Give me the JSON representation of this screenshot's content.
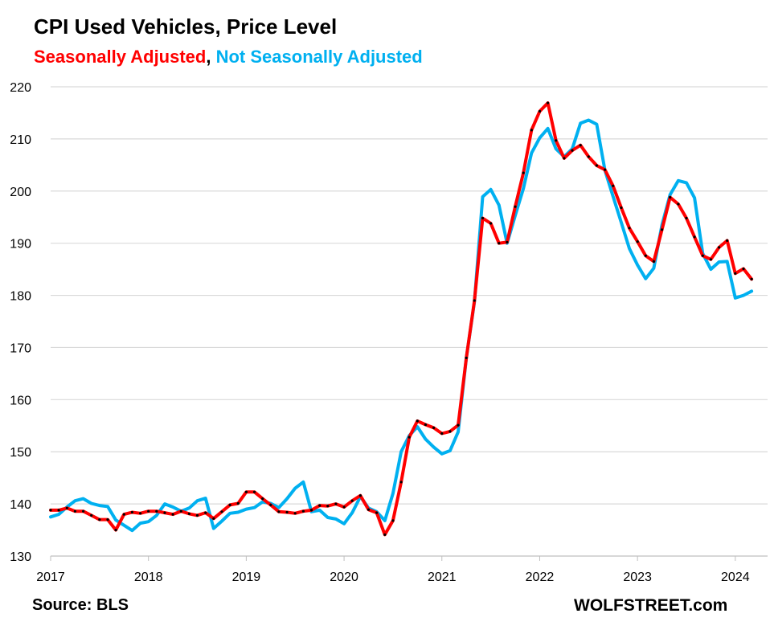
{
  "chart_data": {
    "type": "line",
    "title": "CPI Used Vehicles, Price Level",
    "subtitle_parts": [
      {
        "text": "Seasonally Adjusted",
        "color": "#ff0000"
      },
      {
        "text": ", ",
        "color": "#000000"
      },
      {
        "text": "Not Seasonally Adjusted",
        "color": "#00b0f0"
      }
    ],
    "source": "Source: BLS",
    "brand": "WOLFSTREET.com",
    "xlabel": "",
    "ylabel": "",
    "ylim": [
      130,
      220
    ],
    "yticks": [
      130,
      140,
      150,
      160,
      170,
      180,
      190,
      200,
      210,
      220
    ],
    "xlim": [
      2017.0,
      2024.33
    ],
    "xticks": [
      "2017",
      "2018",
      "2019",
      "2020",
      "2021",
      "2022",
      "2023",
      "2024"
    ],
    "grid": true,
    "series": [
      {
        "name": "Seasonally Adjusted",
        "color": "#ff0000",
        "marker_color": "#000000",
        "start": "2017-01",
        "values": [
          138.8,
          138.8,
          139.2,
          138.6,
          138.6,
          137.8,
          137.0,
          137.0,
          135.0,
          138.0,
          138.4,
          138.2,
          138.6,
          138.6,
          138.3,
          138.0,
          138.6,
          138.1,
          137.8,
          138.3,
          137.2,
          138.5,
          139.8,
          140.1,
          142.3,
          142.3,
          141.0,
          139.8,
          138.5,
          138.4,
          138.2,
          138.6,
          138.8,
          139.7,
          139.6,
          140.0,
          139.4,
          140.6,
          141.6,
          138.9,
          138.3,
          134.1,
          136.8,
          144.2,
          152.8,
          155.9,
          155.2,
          154.6,
          153.5,
          153.9,
          155.1,
          168.0,
          179.0,
          194.8,
          193.8,
          190.0,
          190.2,
          197.0,
          203.5,
          211.7,
          215.3,
          216.9,
          209.7,
          206.3,
          207.8,
          208.8,
          206.6,
          204.9,
          204.1,
          201.0,
          196.8,
          192.9,
          190.3,
          187.6,
          186.5,
          192.6,
          198.8,
          197.5,
          194.8,
          191.2,
          187.6,
          186.9,
          189.2,
          190.5,
          184.2,
          185.1,
          183.1
        ]
      },
      {
        "name": "Not Seasonally Adjusted",
        "color": "#00b0f0",
        "start": "2017-01",
        "values": [
          137.5,
          138.0,
          139.4,
          140.6,
          141.0,
          140.1,
          139.7,
          139.5,
          136.9,
          135.9,
          134.9,
          136.3,
          136.6,
          137.8,
          140.0,
          139.4,
          138.6,
          139.2,
          140.6,
          141.1,
          135.3,
          136.7,
          138.2,
          138.4,
          139.0,
          139.3,
          140.4,
          140.1,
          139.3,
          141.0,
          143.0,
          144.2,
          138.5,
          138.8,
          137.4,
          137.1,
          136.2,
          138.3,
          141.4,
          139.2,
          138.5,
          136.8,
          142.0,
          150.0,
          153.1,
          154.8,
          152.4,
          150.9,
          149.6,
          150.2,
          153.8,
          168.0,
          178.8,
          198.9,
          200.3,
          197.3,
          190.0,
          195.3,
          200.5,
          207.3,
          210.2,
          212.0,
          208.1,
          206.6,
          208.1,
          213.0,
          213.6,
          212.8,
          204.0,
          199.0,
          194.0,
          189.0,
          185.8,
          183.2,
          185.2,
          193.5,
          199.3,
          202.0,
          201.6,
          198.7,
          188.0,
          185.0,
          186.4,
          186.5,
          179.5,
          180.0,
          180.8
        ]
      }
    ]
  }
}
